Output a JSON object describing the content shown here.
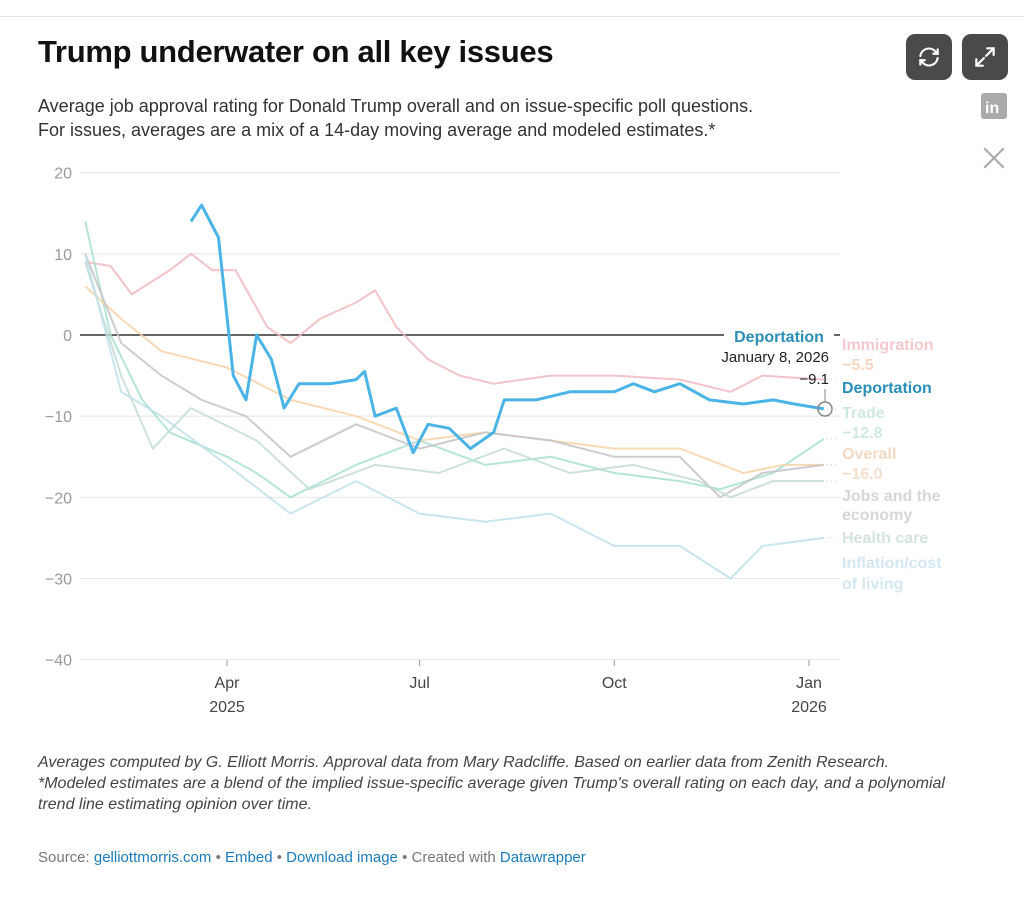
{
  "header": {
    "title": "Trump underwater on all key issues",
    "subtitle_1": "Average job approval rating for Donald Trump overall and on issue-specific poll questions.",
    "subtitle_2": "For issues, averages are a mix of a 14-day moving average and modeled estimates.*"
  },
  "toolbar": {
    "refresh_icon": "refresh-icon",
    "expand_icon": "expand-icon",
    "linkedin_icon": "linkedin-icon",
    "x_icon": "x-icon"
  },
  "chart_data": {
    "type": "line",
    "ylim": [
      -40,
      20
    ],
    "yticks": [
      20,
      10,
      0,
      -10,
      -20,
      -30,
      -40
    ],
    "xlim": [
      "2025-01-24",
      "2026-01-08"
    ],
    "xticks": [
      {
        "date": "2025-04-01",
        "label": "Apr",
        "sub": "2025"
      },
      {
        "date": "2025-07-01",
        "label": "Jul",
        "sub": ""
      },
      {
        "date": "2025-10-01",
        "label": "Oct",
        "sub": ""
      },
      {
        "date": "2026-01-01",
        "label": "Jan",
        "sub": "2026"
      }
    ],
    "grid": true,
    "series": [
      {
        "name": "Immigration",
        "last_label": "−5.5",
        "color": "#f0b8bf",
        "points": [
          [
            "2025-01-24",
            9
          ],
          [
            "2025-02-05",
            8.5
          ],
          [
            "2025-02-15",
            5
          ],
          [
            "2025-03-05",
            8
          ],
          [
            "2025-03-15",
            10
          ],
          [
            "2025-03-25",
            8
          ],
          [
            "2025-04-05",
            8
          ],
          [
            "2025-04-20",
            1
          ],
          [
            "2025-05-01",
            -1
          ],
          [
            "2025-05-15",
            2
          ],
          [
            "2025-06-01",
            4
          ],
          [
            "2025-06-10",
            5.5
          ],
          [
            "2025-06-20",
            1
          ],
          [
            "2025-07-05",
            -3
          ],
          [
            "2025-07-20",
            -5
          ],
          [
            "2025-08-05",
            -6
          ],
          [
            "2025-09-01",
            -5
          ],
          [
            "2025-10-01",
            -5
          ],
          [
            "2025-11-01",
            -5.5
          ],
          [
            "2025-11-25",
            -7
          ],
          [
            "2025-12-10",
            -5
          ],
          [
            "2026-01-08",
            -5.5
          ]
        ]
      },
      {
        "name": "Trade",
        "last_label": "−12.8",
        "color": "#a8e0d0",
        "points": [
          [
            "2025-01-24",
            14
          ],
          [
            "2025-02-05",
            0
          ],
          [
            "2025-02-20",
            -8
          ],
          [
            "2025-03-05",
            -12
          ],
          [
            "2025-04-01",
            -15
          ],
          [
            "2025-04-15",
            -17
          ],
          [
            "2025-05-01",
            -20
          ],
          [
            "2025-06-01",
            -16
          ],
          [
            "2025-07-01",
            -13
          ],
          [
            "2025-08-01",
            -16
          ],
          [
            "2025-09-01",
            -15
          ],
          [
            "2025-10-01",
            -17
          ],
          [
            "2025-11-01",
            -18
          ],
          [
            "2025-11-20",
            -19
          ],
          [
            "2025-12-15",
            -17
          ],
          [
            "2026-01-08",
            -12.8
          ]
        ]
      },
      {
        "name": "Overall",
        "last_label": "−16.0",
        "color": "#f6d3a8",
        "points": [
          [
            "2025-01-24",
            6
          ],
          [
            "2025-02-10",
            2
          ],
          [
            "2025-03-01",
            -2
          ],
          [
            "2025-04-01",
            -4
          ],
          [
            "2025-05-01",
            -8
          ],
          [
            "2025-06-01",
            -10
          ],
          [
            "2025-07-01",
            -13
          ],
          [
            "2025-08-01",
            -12
          ],
          [
            "2025-09-01",
            -13
          ],
          [
            "2025-10-01",
            -14
          ],
          [
            "2025-11-01",
            -14
          ],
          [
            "2025-12-01",
            -17
          ],
          [
            "2025-12-20",
            -16
          ],
          [
            "2026-01-08",
            -16
          ]
        ]
      },
      {
        "name": "Jobs and the economy",
        "last_label": "",
        "color": "#c4c4c8",
        "points": [
          [
            "2025-01-24",
            10
          ],
          [
            "2025-02-10",
            -1
          ],
          [
            "2025-03-01",
            -5
          ],
          [
            "2025-03-20",
            -8
          ],
          [
            "2025-04-10",
            -10
          ],
          [
            "2025-05-01",
            -15
          ],
          [
            "2025-06-01",
            -11
          ],
          [
            "2025-07-01",
            -14
          ],
          [
            "2025-08-01",
            -12
          ],
          [
            "2025-09-01",
            -13
          ],
          [
            "2025-10-01",
            -15
          ],
          [
            "2025-11-01",
            -15
          ],
          [
            "2025-11-20",
            -20
          ],
          [
            "2025-12-10",
            -17
          ],
          [
            "2026-01-08",
            -16
          ]
        ]
      },
      {
        "name": "Health care",
        "last_label": "",
        "color": "#c3dcd8",
        "points": [
          [
            "2025-01-24",
            9
          ],
          [
            "2025-02-10",
            -5
          ],
          [
            "2025-02-25",
            -14
          ],
          [
            "2025-03-15",
            -9
          ],
          [
            "2025-04-15",
            -13
          ],
          [
            "2025-05-10",
            -19
          ],
          [
            "2025-06-10",
            -16
          ],
          [
            "2025-07-10",
            -17
          ],
          [
            "2025-08-10",
            -14
          ],
          [
            "2025-09-10",
            -17
          ],
          [
            "2025-10-10",
            -16
          ],
          [
            "2025-11-10",
            -18
          ],
          [
            "2025-11-25",
            -20
          ],
          [
            "2025-12-15",
            -18
          ],
          [
            "2026-01-08",
            -18
          ]
        ]
      },
      {
        "name": "Inflation/cost of living",
        "last_label": "",
        "color": "#bfe0ea",
        "points": [
          [
            "2025-01-24",
            10
          ],
          [
            "2025-02-10",
            -7
          ],
          [
            "2025-03-01",
            -10
          ],
          [
            "2025-04-01",
            -16
          ],
          [
            "2025-05-01",
            -22
          ],
          [
            "2025-06-01",
            -18
          ],
          [
            "2025-07-01",
            -22
          ],
          [
            "2025-08-01",
            -23
          ],
          [
            "2025-09-01",
            -22
          ],
          [
            "2025-10-01",
            -26
          ],
          [
            "2025-11-01",
            -26
          ],
          [
            "2025-11-25",
            -30
          ],
          [
            "2025-12-10",
            -26
          ],
          [
            "2026-01-08",
            -25
          ]
        ]
      },
      {
        "name": "Deportation",
        "last_label": "",
        "color": "#4ab4e6",
        "points": [
          [
            "2025-03-15",
            14
          ],
          [
            "2025-03-20",
            16
          ],
          [
            "2025-03-28",
            12
          ],
          [
            "2025-04-04",
            -5
          ],
          [
            "2025-04-10",
            -8
          ],
          [
            "2025-04-15",
            0
          ],
          [
            "2025-04-22",
            -3
          ],
          [
            "2025-04-28",
            -9
          ],
          [
            "2025-05-05",
            -6
          ],
          [
            "2025-05-20",
            -6
          ],
          [
            "2025-06-01",
            -5.5
          ],
          [
            "2025-06-05",
            -4.5
          ],
          [
            "2025-06-10",
            -10
          ],
          [
            "2025-06-20",
            -9
          ],
          [
            "2025-06-28",
            -14.5
          ],
          [
            "2025-07-05",
            -11
          ],
          [
            "2025-07-15",
            -11.5
          ],
          [
            "2025-07-25",
            -14
          ],
          [
            "2025-08-05",
            -12
          ],
          [
            "2025-08-10",
            -8
          ],
          [
            "2025-08-25",
            -8
          ],
          [
            "2025-09-10",
            -7
          ],
          [
            "2025-10-01",
            -7
          ],
          [
            "2025-10-10",
            -6
          ],
          [
            "2025-10-20",
            -7
          ],
          [
            "2025-11-01",
            -6
          ],
          [
            "2025-11-15",
            -8
          ],
          [
            "2025-12-01",
            -8.5
          ],
          [
            "2025-12-15",
            -8
          ],
          [
            "2025-12-25",
            -8.5
          ],
          [
            "2026-01-08",
            -9.1
          ]
        ]
      }
    ],
    "legend_labels": {
      "immigration": "Immigration",
      "immigration_value": "−5.5",
      "deportation": "Deportation",
      "trade": "Trade",
      "trade_value": "−12.8",
      "overall": "Overall",
      "overall_value": "−16.0",
      "jobs_1": "Jobs and the",
      "jobs_2": "economy",
      "health": "Health care",
      "inflation_1": "Inflation/cost",
      "inflation_2": "of living"
    },
    "annotation": {
      "series": "Deportation",
      "date": "January 8, 2026",
      "value": "−9.1"
    }
  },
  "footer": {
    "note_1": "Averages computed by G. Elliott Morris. Approval data from Mary Radcliffe. Based on earlier data from Zenith Research.",
    "note_2": "*Modeled estimates are a blend of the implied issue-specific average given Trump's overall rating on each day, and a polynomial trend line estimating opinion over time.",
    "source_label": "Source:",
    "source_link": "gelliottmorris.com",
    "sep": "•",
    "embed": "Embed",
    "download": "Download image",
    "created": "Created with",
    "datawrapper": "Datawrapper"
  }
}
